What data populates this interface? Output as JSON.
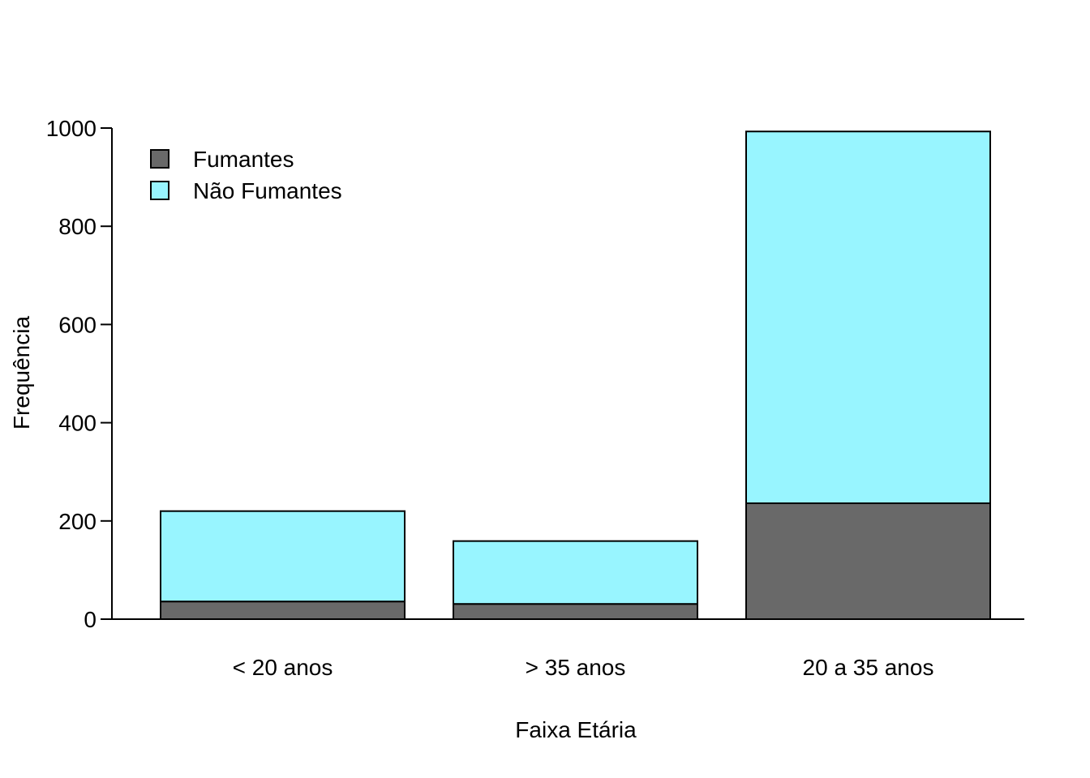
{
  "chart_data": {
    "type": "bar",
    "stacked": true,
    "categories": [
      "< 20 anos",
      "> 35 anos",
      "20 a 35 anos"
    ],
    "series": [
      {
        "name": "Fumantes",
        "color": "#696969",
        "values": [
          36,
          31,
          236
        ]
      },
      {
        "name": "Não Fumantes",
        "color": "#98F5FF",
        "values": [
          184,
          128,
          757
        ]
      }
    ],
    "xlabel": "Faixa Etária",
    "ylabel": "Frequência",
    "ylim": [
      0,
      1000
    ],
    "yticks": [
      0,
      200,
      400,
      600,
      800,
      1000
    ],
    "legend_position": "top-left",
    "grid": false
  }
}
